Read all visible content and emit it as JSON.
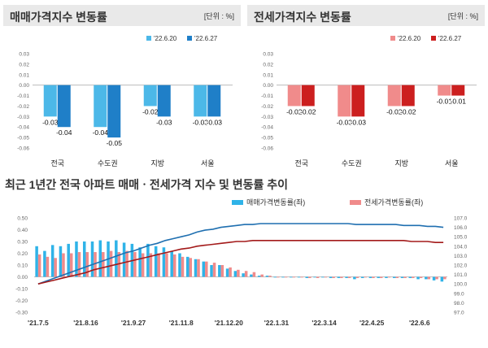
{
  "chart_data": [
    {
      "type": "bar",
      "title": "매매가격지수 변동률",
      "unit_note": "[단위 : %]",
      "categories": [
        "전국",
        "수도권",
        "지방",
        "서울"
      ],
      "series": [
        {
          "name": "'22.6.20",
          "color": "#4cb8e8",
          "values": [
            -0.03,
            -0.04,
            -0.02,
            -0.03
          ]
        },
        {
          "name": "'22.6.27",
          "color": "#1f7fc8",
          "values": [
            -0.04,
            -0.05,
            -0.03,
            -0.03
          ]
        }
      ],
      "value_labels": [
        [
          "-0.03",
          "-0.04"
        ],
        [
          "-0.04",
          "-0.05"
        ],
        [
          "-0.02",
          "-0.03"
        ],
        [
          "-0.03",
          "-0.03"
        ]
      ],
      "ylim": [
        -0.06,
        0.03
      ],
      "yticks": [
        "0.03",
        "0.02",
        "0.01",
        "0.00",
        "-0.01",
        "-0.02",
        "-0.03",
        "-0.04",
        "-0.05",
        "-0.06"
      ],
      "legend": "top-right"
    },
    {
      "type": "bar",
      "title": "전세가격지수 변동률",
      "unit_note": "[단위 : %]",
      "categories": [
        "전국",
        "수도권",
        "지방",
        "서울"
      ],
      "series": [
        {
          "name": "'22.6.20",
          "color": "#f08b8b",
          "values": [
            -0.02,
            -0.03,
            -0.02,
            -0.01
          ]
        },
        {
          "name": "'22.6.27",
          "color": "#cc1f1f",
          "values": [
            -0.02,
            -0.03,
            -0.02,
            -0.01
          ]
        }
      ],
      "value_labels": [
        [
          "-0.02",
          "-0.02"
        ],
        [
          "-0.03",
          "-0.03"
        ],
        [
          "-0.02",
          "-0.02"
        ],
        [
          "-0.01",
          "-0.01"
        ]
      ],
      "ylim": [
        -0.06,
        0.03
      ],
      "yticks": [
        "0.03",
        "0.02",
        "0.01",
        "0.00",
        "-0.01",
        "-0.02",
        "-0.03",
        "-0.04",
        "-0.05",
        "-0.06"
      ],
      "legend": "top-right"
    },
    {
      "type": "bar+line",
      "title": "최근 1년간 전국 아파트 매매ㆍ전세가격 지수 및 변동률 추이",
      "legend": [
        {
          "name": "매매가격변동률(좌)",
          "color": "#2fb3e8"
        },
        {
          "name": "전세가격변동률(좌)",
          "color": "#f08b8b"
        }
      ],
      "x_ticks": [
        "'21.7.5",
        "'21.8.16",
        "'21.9.27",
        "'21.11.8",
        "'21.12.20",
        "'22.1.31",
        "'22.3.14",
        "'22.4.25",
        "'22.6.6"
      ],
      "y_left": {
        "ylim": [
          -0.3,
          0.5
        ],
        "ticks": [
          "0.50",
          "0.40",
          "0.30",
          "0.20",
          "0.10",
          "0.00",
          "-0.10",
          "-0.20",
          "-0.30"
        ]
      },
      "y_right": {
        "ylim": [
          97.0,
          107.0
        ],
        "ticks": [
          "107.0",
          "106.0",
          "105.0",
          "104.0",
          "103.0",
          "102.0",
          "101.0",
          "100.0",
          "99.0",
          "98.0",
          "97.0"
        ]
      },
      "sale_change": [
        0.26,
        0.22,
        0.27,
        0.26,
        0.28,
        0.3,
        0.3,
        0.3,
        0.31,
        0.3,
        0.31,
        0.29,
        0.28,
        0.25,
        0.28,
        0.26,
        0.25,
        0.22,
        0.2,
        0.17,
        0.15,
        0.13,
        0.1,
        0.1,
        0.07,
        0.05,
        0.03,
        0.02,
        0.01,
        0.01,
        0.0,
        0.0,
        0.0,
        0.0,
        -0.01,
        0.0,
        0.0,
        -0.01,
        -0.01,
        -0.01,
        -0.02,
        -0.01,
        -0.01,
        -0.01,
        -0.01,
        -0.01,
        -0.01,
        -0.01,
        -0.02,
        -0.02,
        -0.03,
        -0.04
      ],
      "jeonse_change": [
        0.19,
        0.17,
        0.16,
        0.2,
        0.2,
        0.21,
        0.21,
        0.21,
        0.21,
        0.22,
        0.21,
        0.22,
        0.21,
        0.2,
        0.2,
        0.2,
        0.2,
        0.19,
        0.17,
        0.16,
        0.15,
        0.13,
        0.12,
        0.1,
        0.08,
        0.06,
        0.05,
        0.04,
        0.02,
        0.01,
        0.0,
        0.0,
        0.0,
        0.0,
        -0.01,
        -0.01,
        0.0,
        -0.01,
        -0.01,
        -0.01,
        -0.01,
        0.0,
        -0.01,
        -0.01,
        0.0,
        -0.01,
        -0.01,
        -0.01,
        -0.01,
        -0.02,
        -0.02,
        -0.02
      ],
      "sale_index": [
        100.0,
        100.3,
        100.6,
        100.9,
        101.2,
        101.5,
        101.8,
        102.1,
        102.4,
        102.7,
        103.0,
        103.3,
        103.5,
        103.8,
        104.1,
        104.3,
        104.6,
        104.8,
        105.0,
        105.2,
        105.5,
        105.7,
        105.8,
        106.0,
        106.1,
        106.2,
        106.3,
        106.3,
        106.4,
        106.4,
        106.4,
        106.4,
        106.4,
        106.4,
        106.4,
        106.4,
        106.4,
        106.4,
        106.4,
        106.4,
        106.3,
        106.3,
        106.3,
        106.3,
        106.3,
        106.3,
        106.2,
        106.2,
        106.2,
        106.1,
        106.1,
        106.0
      ],
      "jeonse_index": [
        100.0,
        100.2,
        100.4,
        100.6,
        100.8,
        101.0,
        101.2,
        101.5,
        101.7,
        101.9,
        102.1,
        102.3,
        102.5,
        102.7,
        102.9,
        103.1,
        103.3,
        103.5,
        103.7,
        103.8,
        104.0,
        104.1,
        104.2,
        104.3,
        104.4,
        104.5,
        104.5,
        104.6,
        104.6,
        104.6,
        104.6,
        104.6,
        104.6,
        104.6,
        104.6,
        104.6,
        104.6,
        104.6,
        104.6,
        104.6,
        104.6,
        104.6,
        104.6,
        104.6,
        104.6,
        104.6,
        104.6,
        104.5,
        104.5,
        104.5,
        104.4,
        104.4
      ]
    }
  ]
}
